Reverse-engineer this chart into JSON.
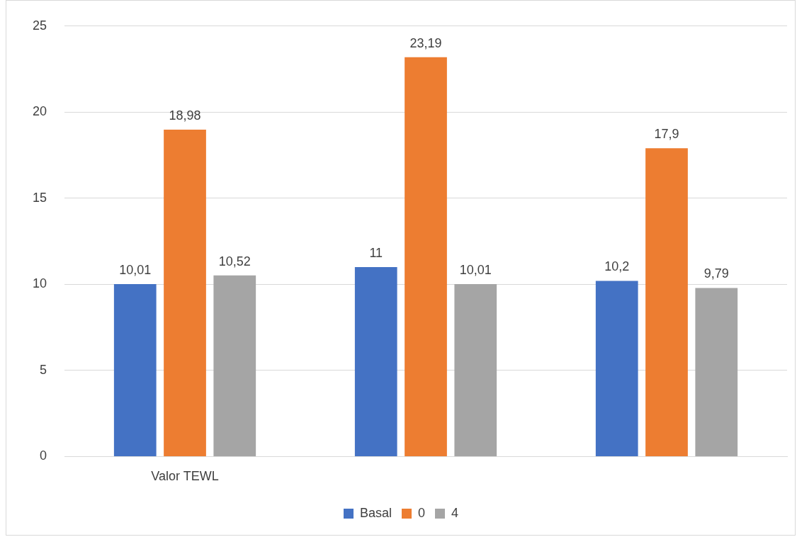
{
  "chart_data": {
    "type": "bar",
    "categories": [
      "Valor TEWL",
      null,
      null
    ],
    "series": [
      {
        "name": "Basal",
        "color": "#4472c4",
        "values": [
          10.01,
          11,
          10.2
        ],
        "value_labels": [
          "10,01",
          "11",
          "10,2"
        ]
      },
      {
        "name": "0",
        "color": "#ed7d31",
        "values": [
          18.98,
          23.19,
          17.9
        ],
        "value_labels": [
          "18,98",
          "23,19",
          "17,9"
        ]
      },
      {
        "name": "4",
        "color": "#a5a5a5",
        "values": [
          10.52,
          10.01,
          9.79
        ],
        "value_labels": [
          "10,52",
          "10,01",
          "9,79"
        ]
      }
    ],
    "ylim": [
      0,
      25
    ],
    "yticks": [
      0,
      5,
      10,
      15,
      20,
      25
    ],
    "grid": "y",
    "legend": "bottom"
  }
}
